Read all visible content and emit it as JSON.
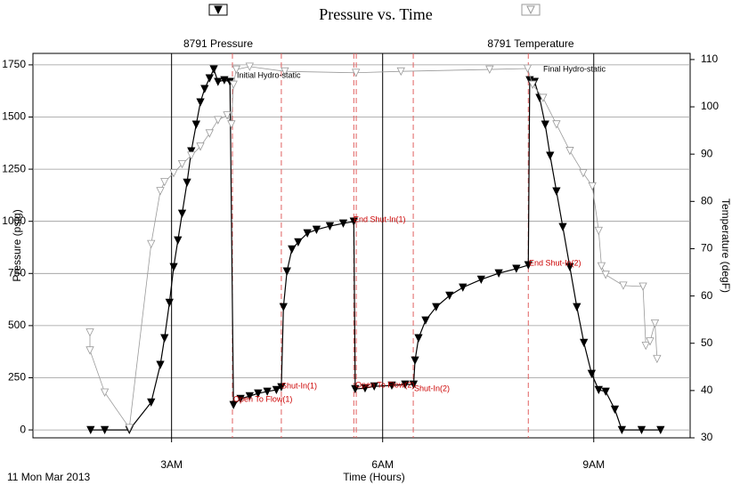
{
  "chart_data": {
    "type": "line",
    "title": "Pressure vs. Time",
    "x_label": "Time (Hours)",
    "y_label": "Pressure (psig)",
    "y2_label": "Temperature (degF)",
    "date_label": "11 Mon Mar 2013",
    "xlim": [
      1.03,
      10.37
    ],
    "xticks": [
      {
        "value": 3,
        "label": "3AM"
      },
      {
        "value": 6,
        "label": "6AM"
      },
      {
        "value": 9,
        "label": "9AM"
      }
    ],
    "ylim": [
      -38,
      1805
    ],
    "yticks": [
      0,
      250,
      500,
      750,
      1000,
      1250,
      1500,
      1750
    ],
    "y2lim": [
      30,
      111.3
    ],
    "y2ticks": [
      30,
      40,
      50,
      60,
      70,
      80,
      90,
      100,
      110
    ],
    "grid": true,
    "series": [
      {
        "name": "8791 Pressure",
        "color": "#000000",
        "marker": "filled",
        "x": [
          1.85,
          2.05,
          2.4,
          2.71,
          2.84,
          2.9,
          2.97,
          3.03,
          3.09,
          3.15,
          3.22,
          3.28,
          3.35,
          3.41,
          3.47,
          3.54,
          3.6,
          3.66,
          3.75,
          3.83,
          3.88,
          3.98,
          4.11,
          4.23,
          4.36,
          4.49,
          4.56,
          4.59,
          4.64,
          4.71,
          4.8,
          4.93,
          5.06,
          5.25,
          5.44,
          5.59,
          5.61,
          5.75,
          5.88,
          6.13,
          6.32,
          6.44,
          6.46,
          6.51,
          6.61,
          6.76,
          6.95,
          7.14,
          7.4,
          7.65,
          7.9,
          8.07,
          8.09,
          8.16,
          8.23,
          8.31,
          8.38,
          8.47,
          8.56,
          8.66,
          8.76,
          8.86,
          8.97,
          9.07,
          9.17,
          9.3,
          9.4,
          9.68,
          9.95
        ],
        "values": [
          0,
          0,
          0,
          132,
          312,
          440,
          610,
          781,
          909,
          1037,
          1186,
          1336,
          1464,
          1571,
          1635,
          1686,
          1729,
          1669,
          1677,
          1669,
          120,
          149,
          162,
          175,
          184,
          192,
          205,
          589,
          760,
          866,
          900,
          943,
          960,
          977,
          990,
          999,
          196,
          200,
          209,
          213,
          218,
          218,
          333,
          440,
          525,
          589,
          644,
          683,
          721,
          751,
          773,
          790,
          1677,
          1669,
          1592,
          1464,
          1315,
          1144,
          973,
          781,
          589,
          418,
          269,
          192,
          184,
          98,
          0,
          0,
          0
        ]
      },
      {
        "name": "8791 Temperature",
        "color": "#999999",
        "marker": "hollow",
        "axis": "y2",
        "x": [
          1.84,
          1.84,
          2.05,
          2.4,
          2.71,
          2.84,
          2.9,
          3.03,
          3.15,
          3.28,
          3.41,
          3.54,
          3.66,
          3.79,
          3.85,
          3.88,
          3.92,
          4.11,
          4.61,
          5.62,
          6.26,
          7.52,
          8.06,
          8.13,
          8.28,
          8.47,
          8.66,
          8.85,
          8.98,
          9.07,
          9.11,
          9.17,
          9.42,
          9.7,
          9.74,
          9.8,
          9.87,
          9.9
        ],
        "values": [
          52.3,
          48.5,
          39.6,
          32.1,
          71.0,
          82.2,
          84.1,
          86.0,
          87.9,
          89.7,
          91.6,
          94.4,
          97.2,
          98.2,
          96.3,
          104.7,
          107.9,
          108.5,
          107.5,
          107.2,
          107.5,
          107.9,
          108.1,
          104.7,
          101.9,
          96.3,
          90.7,
          86.0,
          83.2,
          73.8,
          66.3,
          64.5,
          62.2,
          62.0,
          49.5,
          50.4,
          54.2,
          46.7
        ]
      }
    ],
    "event_lines": {
      "color": "#e06060",
      "x": [
        3.865,
        4.56,
        5.59,
        5.625,
        6.435,
        8.07
      ]
    },
    "annotations": [
      {
        "text": "Initial Hydro-static",
        "color": "#000000"
      },
      {
        "text": "Final Hydro-static",
        "color": "#000000"
      },
      {
        "text": "End Shut-In(1)",
        "color": "#cc0000"
      },
      {
        "text": "Shut-In(1)",
        "color": "#cc0000"
      },
      {
        "text": "Open To Flow(1)",
        "color": "#cc0000"
      },
      {
        "text": "Open To Flow(2)",
        "color": "#cc0000"
      },
      {
        "text": "Shut-In(2)",
        "color": "#cc0000"
      },
      {
        "text": "End Shut-In(2)",
        "color": "#cc0000"
      }
    ]
  }
}
